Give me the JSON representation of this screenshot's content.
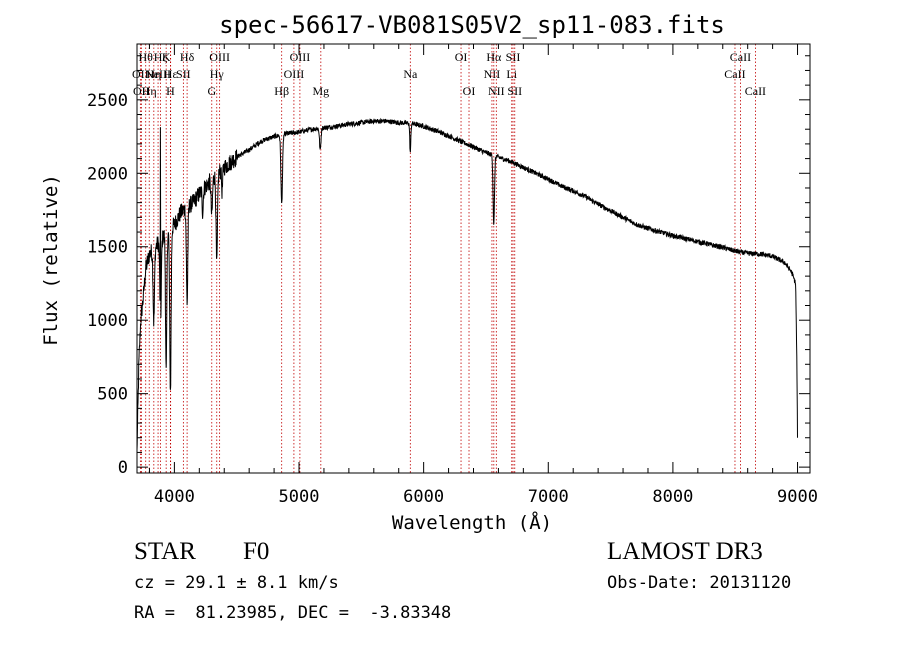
{
  "chart_data": {
    "type": "line",
    "title": "spec-56617-VB081S05V2_sp11-083.fits",
    "xlabel": "Wavelength (Å)",
    "ylabel": "Flux (relative)",
    "xlim": [
      3700,
      9100
    ],
    "ylim": [
      -40,
      2880
    ],
    "x_ticks": [
      4000,
      5000,
      6000,
      7000,
      8000,
      9000
    ],
    "y_ticks": [
      0,
      500,
      1000,
      1500,
      2000,
      2500
    ],
    "grid": false,
    "continuum": [
      [
        3700,
        100
      ],
      [
        3715,
        700
      ],
      [
        3730,
        1000
      ],
      [
        3750,
        1150
      ],
      [
        3770,
        1350
      ],
      [
        3800,
        1450
      ],
      [
        3850,
        1500
      ],
      [
        3900,
        1560
      ],
      [
        3950,
        1600
      ],
      [
        4000,
        1650
      ],
      [
        4050,
        1730
      ],
      [
        4100,
        1770
      ],
      [
        4150,
        1800
      ],
      [
        4200,
        1860
      ],
      [
        4300,
        1960
      ],
      [
        4400,
        2040
      ],
      [
        4500,
        2110
      ],
      [
        4600,
        2160
      ],
      [
        4700,
        2220
      ],
      [
        4800,
        2250
      ],
      [
        4900,
        2270
      ],
      [
        5000,
        2280
      ],
      [
        5100,
        2300
      ],
      [
        5200,
        2310
      ],
      [
        5300,
        2320
      ],
      [
        5400,
        2335
      ],
      [
        5500,
        2345
      ],
      [
        5600,
        2355
      ],
      [
        5700,
        2355
      ],
      [
        5800,
        2345
      ],
      [
        5900,
        2340
      ],
      [
        6000,
        2320
      ],
      [
        6100,
        2290
      ],
      [
        6200,
        2255
      ],
      [
        6300,
        2215
      ],
      [
        6400,
        2180
      ],
      [
        6500,
        2140
      ],
      [
        6600,
        2110
      ],
      [
        6700,
        2080
      ],
      [
        6800,
        2040
      ],
      [
        6900,
        2000
      ],
      [
        7000,
        1960
      ],
      [
        7100,
        1915
      ],
      [
        7200,
        1880
      ],
      [
        7300,
        1840
      ],
      [
        7400,
        1790
      ],
      [
        7500,
        1745
      ],
      [
        7600,
        1700
      ],
      [
        7700,
        1655
      ],
      [
        7800,
        1625
      ],
      [
        7900,
        1600
      ],
      [
        8000,
        1575
      ],
      [
        8100,
        1555
      ],
      [
        8200,
        1535
      ],
      [
        8300,
        1515
      ],
      [
        8400,
        1495
      ],
      [
        8500,
        1470
      ],
      [
        8600,
        1455
      ],
      [
        8700,
        1450
      ],
      [
        8800,
        1435
      ],
      [
        8900,
        1390
      ],
      [
        8950,
        1330
      ],
      [
        8985,
        1250
      ],
      [
        8995,
        700
      ],
      [
        9000,
        200
      ]
    ],
    "absorption_features": [
      {
        "w": 3835,
        "depth": 500,
        "width": 8
      },
      {
        "w": 3889,
        "depth": 600,
        "width": 8
      },
      {
        "w": 3934,
        "depth": 950,
        "width": 7
      },
      {
        "w": 3968,
        "depth": 1100,
        "width": 8
      },
      {
        "w": 4102,
        "depth": 650,
        "width": 8
      },
      {
        "w": 4227,
        "depth": 150,
        "width": 6
      },
      {
        "w": 4300,
        "depth": 250,
        "width": 8
      },
      {
        "w": 4340,
        "depth": 620,
        "width": 8
      },
      {
        "w": 4383,
        "depth": 150,
        "width": 6
      },
      {
        "w": 4861,
        "depth": 470,
        "width": 9
      },
      {
        "w": 5170,
        "depth": 150,
        "width": 8
      },
      {
        "w": 5893,
        "depth": 200,
        "width": 6
      },
      {
        "w": 6563,
        "depth": 470,
        "width": 8
      }
    ],
    "emission_features": [
      {
        "w": 3888,
        "height": 1300,
        "width": 2
      }
    ],
    "lines": [
      {
        "w": 3727,
        "label": "OII",
        "row": 2
      },
      {
        "w": 3735,
        "label": "OII",
        "row": 3
      },
      {
        "w": 3770,
        "label": "Hθ",
        "row": 1
      },
      {
        "w": 3798,
        "label": "Hη",
        "row": 3
      },
      {
        "w": 3835,
        "label": "Hη",
        "row": 2
      },
      {
        "w": 3869,
        "label": "NeIII",
        "row": 2
      },
      {
        "w": 3889,
        "label": "Hζ",
        "row": 1
      },
      {
        "w": 3934,
        "label": "K",
        "row": 1
      },
      {
        "w": 3968,
        "label": "H",
        "row": 3
      },
      {
        "w": 3970,
        "label": "Hε",
        "row": 2
      },
      {
        "w": 4072,
        "label": "SII",
        "row": 2
      },
      {
        "w": 4102,
        "label": "Hδ",
        "row": 1
      },
      {
        "w": 4300,
        "label": "G",
        "row": 3
      },
      {
        "w": 4340,
        "label": "Hγ",
        "row": 2
      },
      {
        "w": 4363,
        "label": "OIII",
        "row": 1
      },
      {
        "w": 4861,
        "label": "Hβ",
        "row": 3
      },
      {
        "w": 4959,
        "label": "OIII",
        "row": 2
      },
      {
        "w": 5007,
        "label": "OIII",
        "row": 1
      },
      {
        "w": 5175,
        "label": "Mg",
        "row": 3
      },
      {
        "w": 5893,
        "label": "Na",
        "row": 2
      },
      {
        "w": 6300,
        "label": "OI",
        "row": 1
      },
      {
        "w": 6364,
        "label": "OI",
        "row": 3
      },
      {
        "w": 6548,
        "label": "NII",
        "row": 2
      },
      {
        "w": 6563,
        "label": "Hα",
        "row": 1
      },
      {
        "w": 6583,
        "label": "NII",
        "row": 3
      },
      {
        "w": 6707,
        "label": "Li",
        "row": 2
      },
      {
        "w": 6717,
        "label": "SII",
        "row": 1
      },
      {
        "w": 6731,
        "label": "SII",
        "row": 3
      },
      {
        "w": 8498,
        "label": "CaII",
        "row": 2
      },
      {
        "w": 8542,
        "label": "CaII",
        "row": 1
      },
      {
        "w": 8662,
        "label": "CaII",
        "row": 3
      }
    ]
  },
  "info": {
    "object_class": "STAR",
    "subclass": "F0",
    "survey": "LAMOST DR3",
    "redshift": "cz = 29.1 ± 8.1 km/s",
    "obs_date": "Obs-Date: 20131120",
    "coords": "RA =  81.23985, DEC =  -3.83348"
  },
  "colors": {
    "line_marker": "#c00000",
    "spectrum": "#000000"
  }
}
